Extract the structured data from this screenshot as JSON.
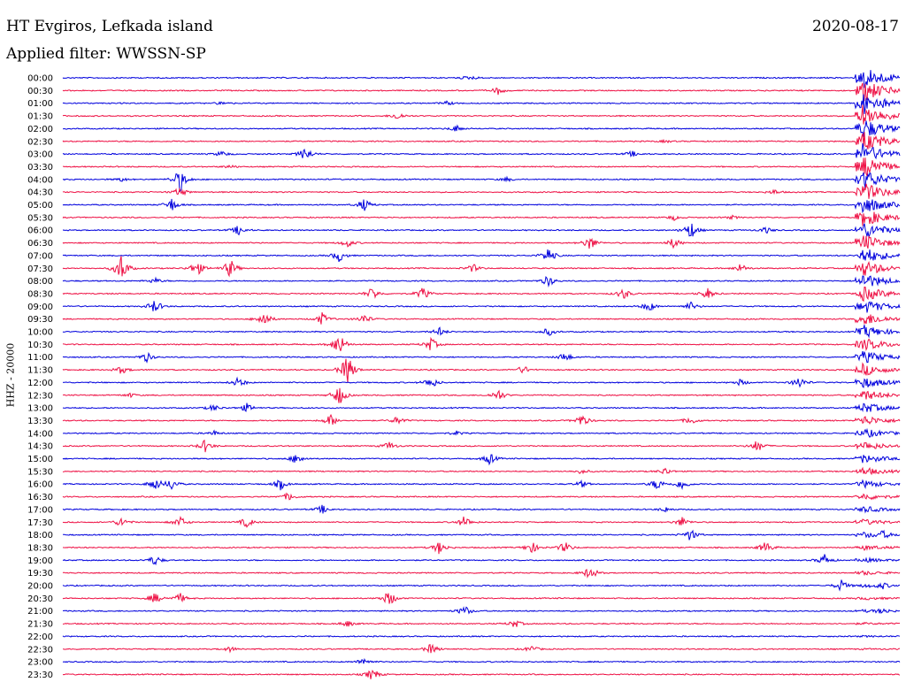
{
  "header": {
    "station": "HT Evgiros, Lefkada island",
    "filter": "Applied filter: WWSSN-SP",
    "date": "2020-08-17"
  },
  "chart_data": {
    "type": "line",
    "title": "HT Evgiros, Lefkada island",
    "subtitle": "Applied filter: WWSSN-SP",
    "ylabel": "HHZ - 20000",
    "xlabel": "",
    "trace_colors": [
      "#0000dd",
      "#ee1044"
    ],
    "rows": [
      {
        "label": "00:00",
        "color": "#0000dd",
        "events": [
          [
            0.48,
            0.2
          ],
          [
            0.49,
            0.3
          ]
        ]
      },
      {
        "label": "00:30",
        "color": "#ee1044",
        "events": [
          [
            0.52,
            0.9
          ]
        ]
      },
      {
        "label": "01:00",
        "color": "#0000dd",
        "events": [
          [
            0.19,
            0.4
          ],
          [
            0.46,
            0.5
          ]
        ]
      },
      {
        "label": "01:30",
        "color": "#ee1044",
        "events": [
          [
            0.4,
            1.0
          ]
        ]
      },
      {
        "label": "02:00",
        "color": "#0000dd",
        "events": [
          [
            0.47,
            0.8
          ]
        ]
      },
      {
        "label": "02:30",
        "color": "#ee1044",
        "events": [
          [
            0.72,
            0.3
          ]
        ]
      },
      {
        "label": "03:00",
        "color": "#0000dd",
        "events": [
          [
            0.19,
            0.7
          ],
          [
            0.29,
            1.8
          ],
          [
            0.68,
            0.7
          ]
        ]
      },
      {
        "label": "03:30",
        "color": "#ee1044",
        "events": [
          [
            0.2,
            0.4
          ],
          [
            0.97,
            0.9
          ]
        ]
      },
      {
        "label": "04:00",
        "color": "#0000dd",
        "events": [
          [
            0.07,
            0.5
          ],
          [
            0.14,
            3.0
          ],
          [
            0.53,
            0.5
          ]
        ]
      },
      {
        "label": "04:30",
        "color": "#ee1044",
        "events": [
          [
            0.14,
            1.2
          ],
          [
            0.85,
            0.6
          ]
        ]
      },
      {
        "label": "05:00",
        "color": "#0000dd",
        "events": [
          [
            0.13,
            1.6
          ],
          [
            0.36,
            1.5
          ]
        ]
      },
      {
        "label": "05:30",
        "color": "#ee1044",
        "events": [
          [
            0.73,
            0.6
          ],
          [
            0.8,
            0.4
          ]
        ]
      },
      {
        "label": "06:00",
        "color": "#0000dd",
        "events": [
          [
            0.21,
            1.2
          ],
          [
            0.75,
            2.2
          ],
          [
            0.84,
            0.8
          ]
        ]
      },
      {
        "label": "06:30",
        "color": "#ee1044",
        "events": [
          [
            0.34,
            1.0
          ],
          [
            0.63,
            1.8
          ],
          [
            0.73,
            1.3
          ]
        ]
      },
      {
        "label": "07:00",
        "color": "#0000dd",
        "events": [
          [
            0.33,
            1.5
          ],
          [
            0.58,
            2.0
          ]
        ]
      },
      {
        "label": "07:30",
        "color": "#ee1044",
        "events": [
          [
            0.07,
            3.5
          ],
          [
            0.16,
            2.0
          ],
          [
            0.2,
            2.2
          ],
          [
            0.49,
            1.0
          ],
          [
            0.81,
            1.1
          ]
        ]
      },
      {
        "label": "08:00",
        "color": "#0000dd",
        "events": [
          [
            0.11,
            0.7
          ],
          [
            0.58,
            1.4
          ]
        ]
      },
      {
        "label": "08:30",
        "color": "#ee1044",
        "events": [
          [
            0.37,
            1.6
          ],
          [
            0.43,
            1.5
          ],
          [
            0.67,
            1.4
          ],
          [
            0.77,
            1.4
          ]
        ]
      },
      {
        "label": "09:00",
        "color": "#0000dd",
        "events": [
          [
            0.11,
            1.7
          ],
          [
            0.7,
            1.3
          ],
          [
            0.75,
            1.0
          ]
        ]
      },
      {
        "label": "09:30",
        "color": "#ee1044",
        "events": [
          [
            0.24,
            2.0
          ],
          [
            0.31,
            1.5
          ],
          [
            0.36,
            1.2
          ]
        ]
      },
      {
        "label": "10:00",
        "color": "#0000dd",
        "events": [
          [
            0.45,
            1.0
          ],
          [
            0.58,
            1.0
          ]
        ]
      },
      {
        "label": "10:30",
        "color": "#ee1044",
        "events": [
          [
            0.33,
            3.0
          ],
          [
            0.44,
            1.6
          ]
        ]
      },
      {
        "label": "11:00",
        "color": "#0000dd",
        "events": [
          [
            0.1,
            1.2
          ],
          [
            0.6,
            1.2
          ]
        ]
      },
      {
        "label": "11:30",
        "color": "#ee1044",
        "events": [
          [
            0.07,
            1.0
          ],
          [
            0.34,
            4.0
          ],
          [
            0.55,
            1.0
          ]
        ]
      },
      {
        "label": "12:00",
        "color": "#0000dd",
        "events": [
          [
            0.21,
            1.3
          ],
          [
            0.44,
            1.5
          ],
          [
            0.81,
            0.8
          ],
          [
            0.88,
            1.5
          ]
        ]
      },
      {
        "label": "12:30",
        "color": "#ee1044",
        "events": [
          [
            0.08,
            0.5
          ],
          [
            0.33,
            2.5
          ],
          [
            0.52,
            1.5
          ]
        ]
      },
      {
        "label": "13:00",
        "color": "#0000dd",
        "events": [
          [
            0.18,
            0.8
          ],
          [
            0.22,
            1.0
          ]
        ]
      },
      {
        "label": "13:30",
        "color": "#ee1044",
        "events": [
          [
            0.32,
            1.5
          ],
          [
            0.4,
            1.0
          ],
          [
            0.62,
            1.6
          ],
          [
            0.75,
            1.0
          ]
        ]
      },
      {
        "label": "14:00",
        "color": "#0000dd",
        "events": [
          [
            0.18,
            0.6
          ],
          [
            0.47,
            0.5
          ]
        ]
      },
      {
        "label": "14:30",
        "color": "#ee1044",
        "events": [
          [
            0.17,
            1.5
          ],
          [
            0.39,
            1.0
          ],
          [
            0.83,
            1.5
          ]
        ]
      },
      {
        "label": "15:00",
        "color": "#0000dd",
        "events": [
          [
            0.28,
            1.4
          ],
          [
            0.51,
            1.4
          ]
        ]
      },
      {
        "label": "15:30",
        "color": "#ee1044",
        "events": [
          [
            0.62,
            0.6
          ],
          [
            0.72,
            0.9
          ]
        ]
      },
      {
        "label": "16:00",
        "color": "#0000dd",
        "events": [
          [
            0.11,
            1.6
          ],
          [
            0.13,
            1.3
          ],
          [
            0.26,
            1.3
          ],
          [
            0.62,
            0.8
          ],
          [
            0.71,
            1.5
          ],
          [
            0.74,
            1.4
          ]
        ]
      },
      {
        "label": "16:30",
        "color": "#ee1044",
        "events": [
          [
            0.27,
            1.0
          ]
        ]
      },
      {
        "label": "17:00",
        "color": "#0000dd",
        "events": [
          [
            0.31,
            1.0
          ],
          [
            0.72,
            0.6
          ]
        ]
      },
      {
        "label": "17:30",
        "color": "#ee1044",
        "events": [
          [
            0.07,
            1.2
          ],
          [
            0.14,
            1.4
          ],
          [
            0.22,
            1.3
          ],
          [
            0.48,
            1.5
          ],
          [
            0.74,
            1.2
          ]
        ]
      },
      {
        "label": "18:00",
        "color": "#0000dd",
        "events": [
          [
            0.75,
            1.5
          ],
          [
            0.98,
            0.8
          ]
        ]
      },
      {
        "label": "18:30",
        "color": "#ee1044",
        "events": [
          [
            0.45,
            1.6
          ],
          [
            0.56,
            1.5
          ],
          [
            0.6,
            1.4
          ],
          [
            0.84,
            1.5
          ]
        ]
      },
      {
        "label": "19:00",
        "color": "#0000dd",
        "events": [
          [
            0.11,
            1.3
          ],
          [
            0.91,
            1.4
          ]
        ]
      },
      {
        "label": "19:30",
        "color": "#ee1044",
        "events": [
          [
            0.63,
            1.7
          ]
        ]
      },
      {
        "label": "20:00",
        "color": "#0000dd",
        "events": [
          [
            0.93,
            1.4
          ],
          [
            0.98,
            0.6
          ]
        ]
      },
      {
        "label": "20:30",
        "color": "#ee1044",
        "events": [
          [
            0.11,
            1.3
          ],
          [
            0.14,
            1.2
          ],
          [
            0.39,
            2.0
          ]
        ]
      },
      {
        "label": "21:00",
        "color": "#0000dd",
        "events": [
          [
            0.48,
            1.3
          ],
          [
            0.98,
            0.7
          ]
        ]
      },
      {
        "label": "21:30",
        "color": "#ee1044",
        "events": [
          [
            0.34,
            0.8
          ],
          [
            0.54,
            1.0
          ]
        ]
      },
      {
        "label": "22:00",
        "color": "#0000dd",
        "events": []
      },
      {
        "label": "22:30",
        "color": "#ee1044",
        "events": [
          [
            0.2,
            0.6
          ],
          [
            0.44,
            1.3
          ],
          [
            0.56,
            0.8
          ]
        ]
      },
      {
        "label": "23:00",
        "color": "#0000dd",
        "events": [
          [
            0.36,
            1.0
          ]
        ]
      },
      {
        "label": "23:30",
        "color": "#ee1044",
        "events": [
          [
            0.37,
            1.6
          ]
        ]
      }
    ],
    "major_event": {
      "start_row": 0,
      "position": 0.955,
      "decay_rows": 46
    },
    "annotations": []
  }
}
